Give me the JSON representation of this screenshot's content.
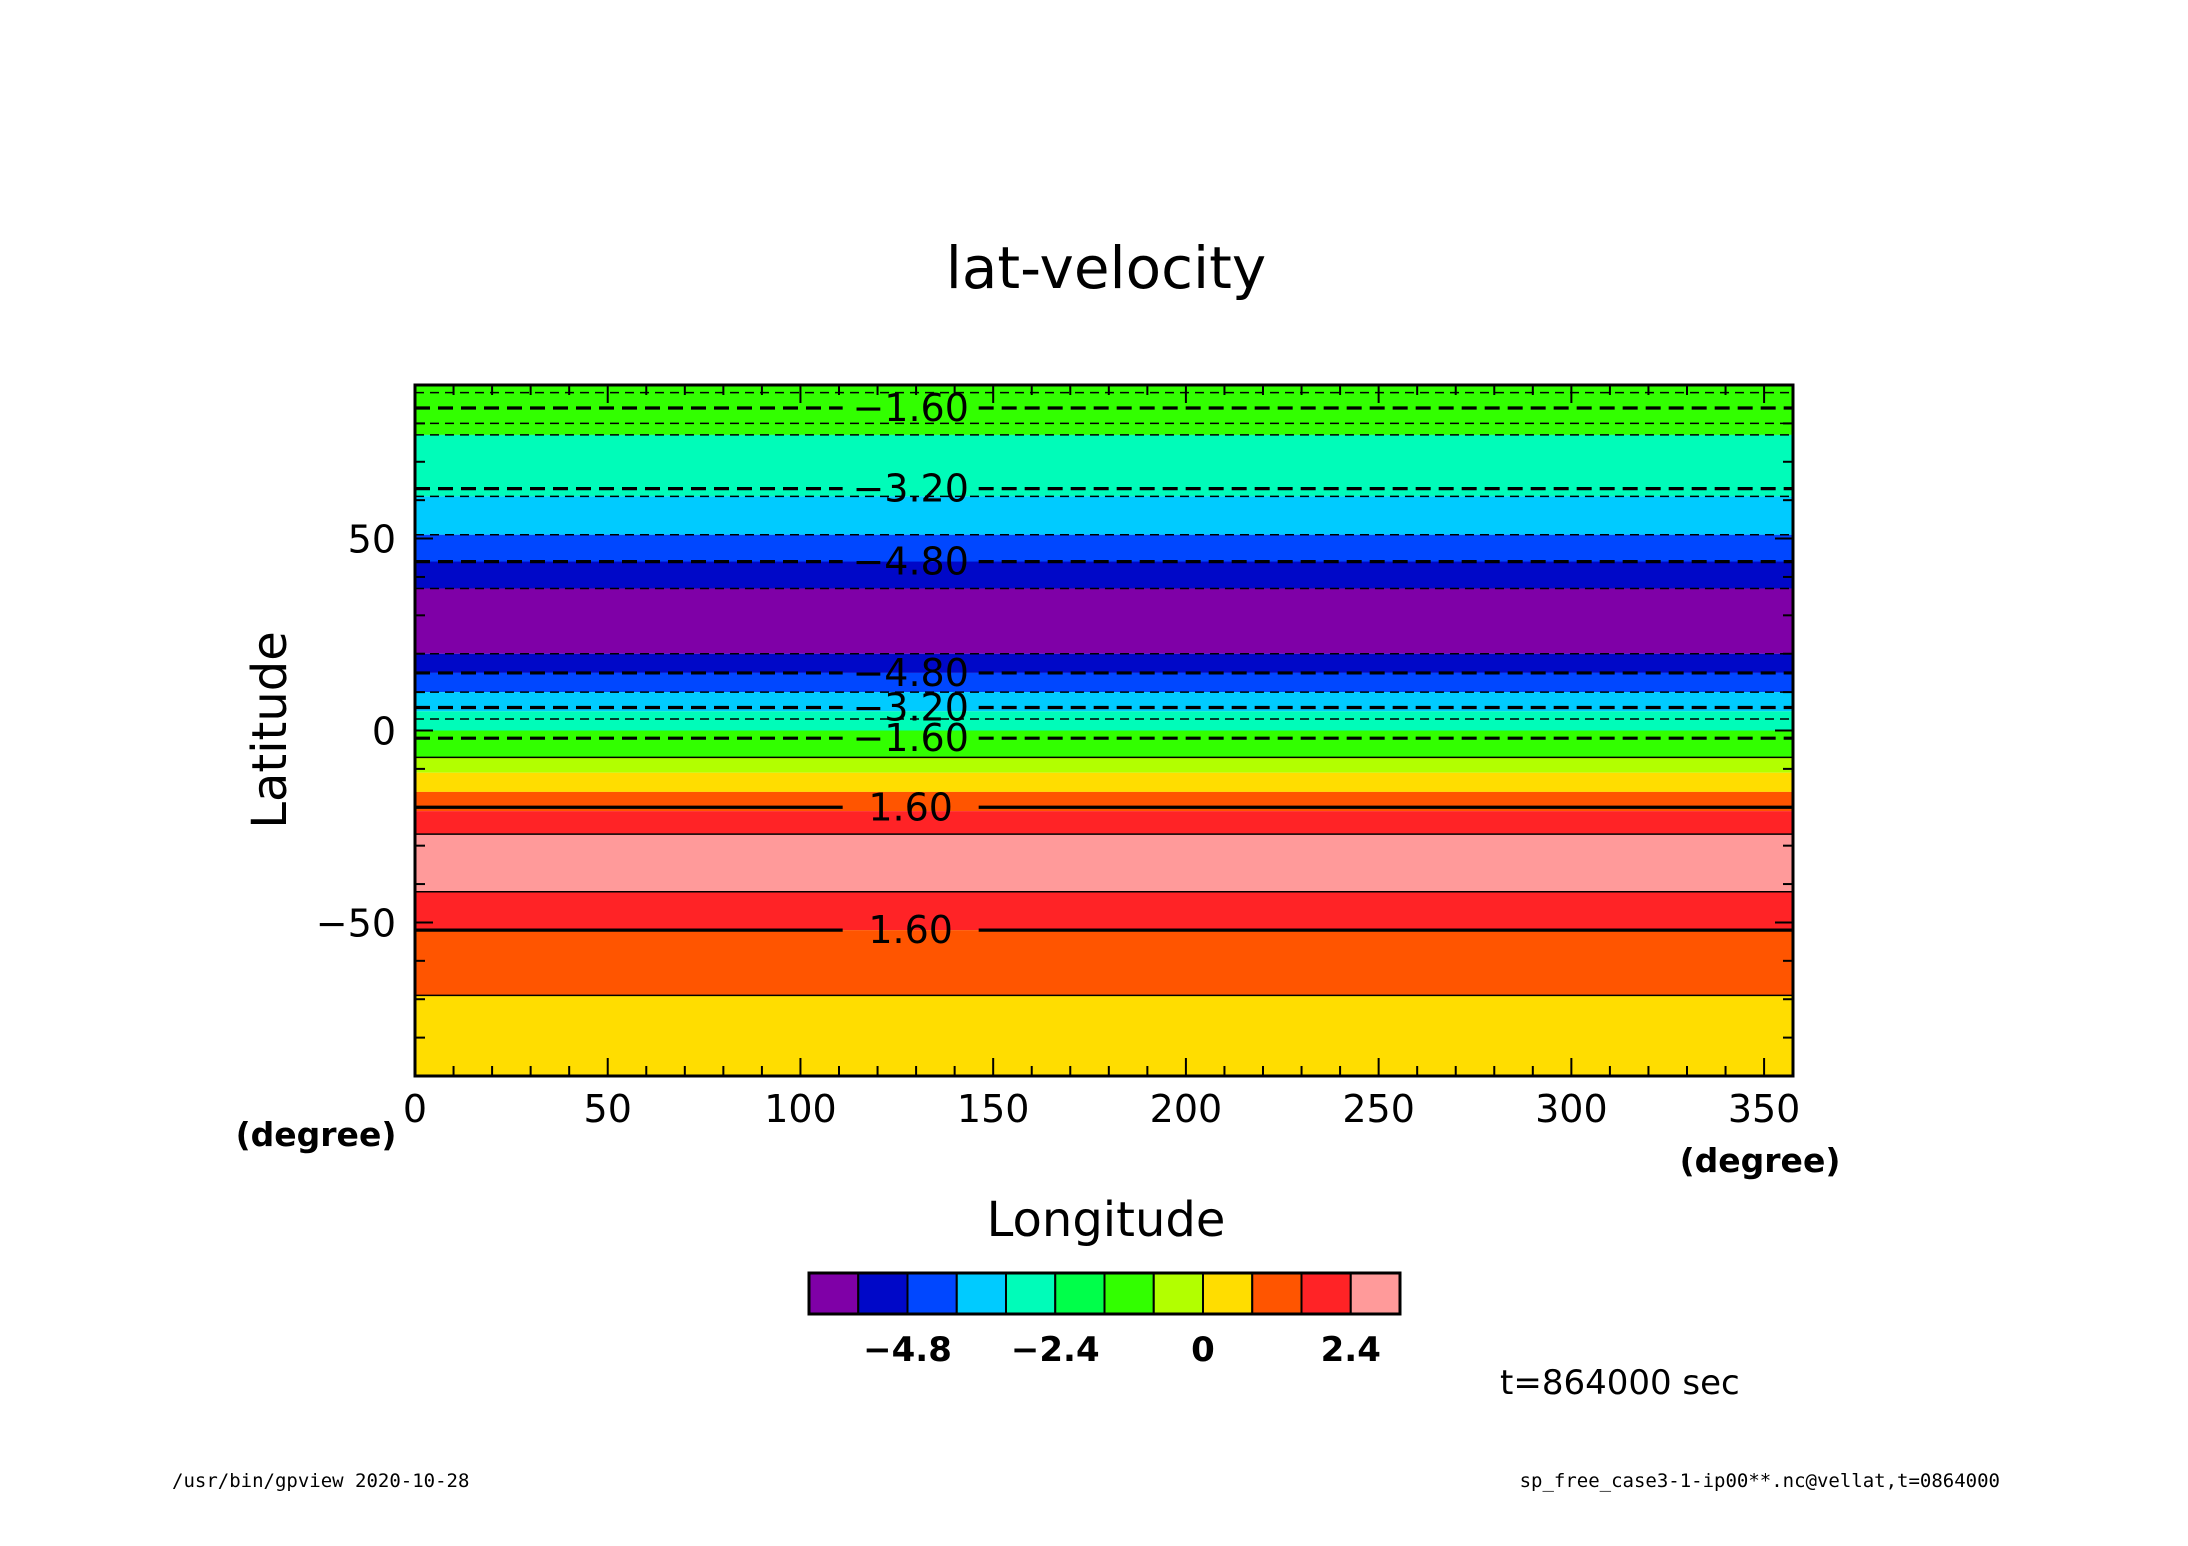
{
  "chart_data": {
    "type": "heatmap",
    "title": "lat-velocity",
    "xlabel": "Longitude",
    "ylabel": "Latitude",
    "x_unit": "(degree)",
    "y_unit": "(degree)",
    "xlim": [
      0,
      357.5
    ],
    "ylim": [
      -90,
      90
    ],
    "x_ticks": [
      0,
      50,
      100,
      150,
      200,
      250,
      300,
      350
    ],
    "y_ticks": [
      -50,
      0,
      50
    ],
    "x_ticklabels": [
      "0",
      "50",
      "100",
      "150",
      "200",
      "250",
      "300",
      "350"
    ],
    "y_ticklabels": [
      "−50",
      "0",
      "50"
    ],
    "grid": false,
    "contour_interval": 0.8,
    "bands": [
      {
        "lat_min": 77,
        "lat_max": 90,
        "level_index": 6
      },
      {
        "lat_min": 61,
        "lat_max": 77,
        "level_index": 4
      },
      {
        "lat_min": 51,
        "lat_max": 61,
        "level_index": 3
      },
      {
        "lat_min": 37,
        "lat_max": 51,
        "level_index": 2
      },
      {
        "lat_min": 37,
        "lat_max": 44,
        "level_index": 1
      },
      {
        "lat_min": 20,
        "lat_max": 37,
        "level_index": 0
      },
      {
        "lat_min": 15,
        "lat_max": 20,
        "level_index": 1
      },
      {
        "lat_min": 10,
        "lat_max": 15,
        "level_index": 2
      },
      {
        "lat_min": 5,
        "lat_max": 10,
        "level_index": 3
      },
      {
        "lat_min": 0,
        "lat_max": 5,
        "level_index": 4
      },
      {
        "lat_min": -7,
        "lat_max": 0,
        "level_index": 6
      },
      {
        "lat_min": -11,
        "lat_max": -7,
        "level_index": 7
      },
      {
        "lat_min": -16,
        "lat_max": -11,
        "level_index": 8
      },
      {
        "lat_min": -21,
        "lat_max": -16,
        "level_index": 9
      },
      {
        "lat_min": -27,
        "lat_max": -21,
        "level_index": 10
      },
      {
        "lat_min": -42,
        "lat_max": -27,
        "level_index": 11
      },
      {
        "lat_min": -52,
        "lat_max": -42,
        "level_index": 10
      },
      {
        "lat_min": -69,
        "lat_max": -52,
        "level_index": 9
      },
      {
        "lat_min": -90,
        "lat_max": -69,
        "level_index": 8
      }
    ],
    "contours": [
      {
        "lat": 84,
        "value": -1.6,
        "label": "−1.60",
        "label_x": 126
      },
      {
        "lat": 63,
        "value": -3.2,
        "label": "−3.20",
        "label_x": 126
      },
      {
        "lat": 44,
        "value": -4.8,
        "label": "−4.80",
        "label_x": 126
      },
      {
        "lat": 15,
        "value": -4.8,
        "label": "−4.80",
        "label_x": 126
      },
      {
        "lat": 6,
        "value": -3.2,
        "label": "−3.20",
        "label_x": 126
      },
      {
        "lat": -2,
        "value": -1.6,
        "label": "−1.60",
        "label_x": 126
      },
      {
        "lat": -20,
        "value": 1.6,
        "label": "1.60",
        "label_x": 126
      },
      {
        "lat": -52,
        "value": 1.6,
        "label": "1.60",
        "label_x": 126
      }
    ],
    "thin_lines": [
      88,
      80,
      77,
      61,
      51,
      37,
      20,
      10,
      3,
      -7,
      -27,
      -42,
      -69
    ],
    "colorbar": {
      "colors": [
        "#7f00a7",
        "#0008c8",
        "#0047ff",
        "#00cbff",
        "#00fcb9",
        "#00ff4a",
        "#32ff00",
        "#b2ff00",
        "#ffdd00",
        "#ff5500",
        "#ff2326",
        "#ff9a9a"
      ],
      "tick_labels": [
        "−4.8",
        "−2.4",
        "0",
        "2.4"
      ],
      "tick_boundary_index": [
        2,
        5,
        8,
        11
      ]
    }
  },
  "time_label": "t=864000 sec",
  "footer": {
    "left": "/usr/bin/gpview   2020-10-28",
    "right": "sp_free_case3-1-ip00**.nc@vellat,t=0864000"
  }
}
